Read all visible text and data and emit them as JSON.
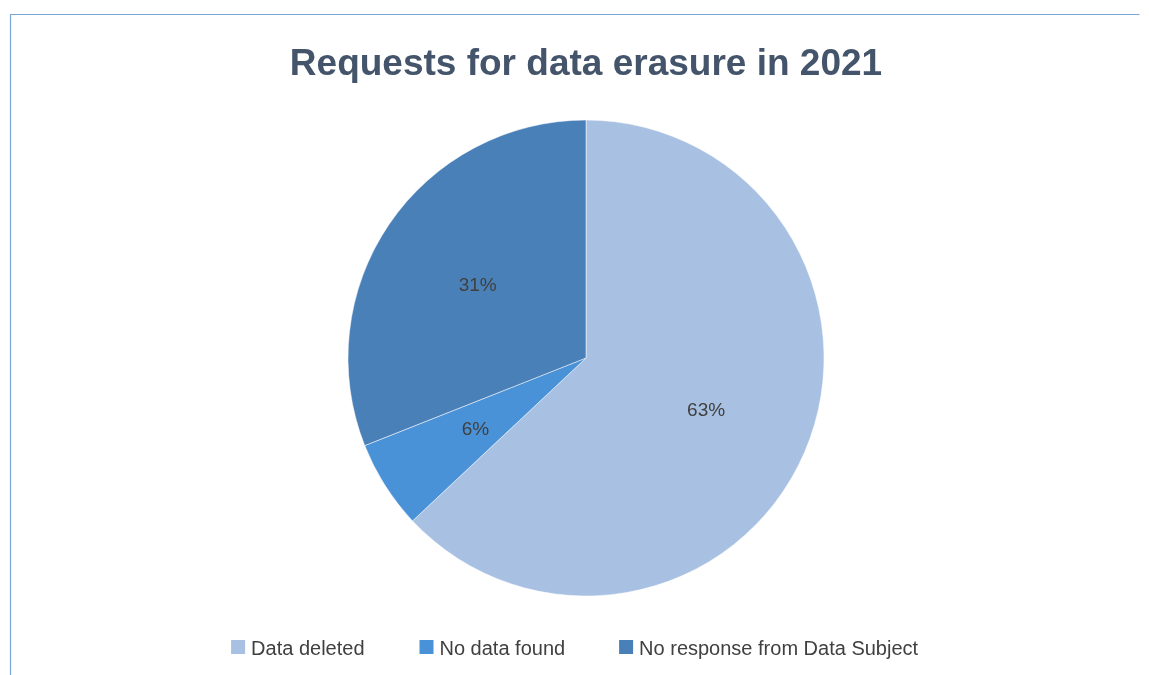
{
  "chart_data": {
    "type": "pie",
    "title": "Requests for data erasure in 2021",
    "categories": [
      "Data deleted",
      "No data found",
      "No response from Data Subject"
    ],
    "values": [
      63,
      6,
      31
    ],
    "colors": [
      "#a8c0e2",
      "#4a92d8",
      "#4a80b8"
    ],
    "value_labels": [
      "63%",
      "6%",
      "31%"
    ],
    "legend": "bottom"
  }
}
